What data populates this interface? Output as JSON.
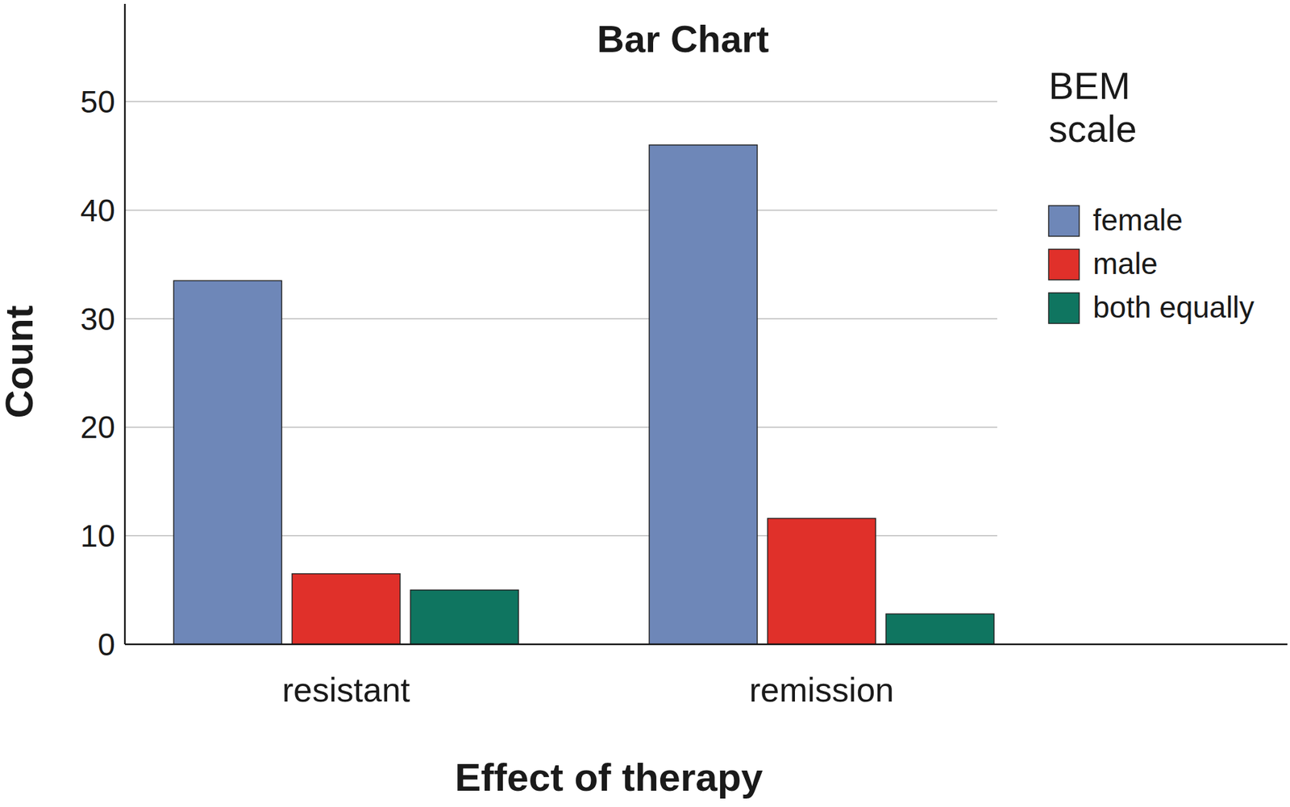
{
  "chart_data": {
    "type": "bar",
    "title": "Bar Chart",
    "x_label": "Effect of therapy",
    "y_label": "Count",
    "legend_title": "BEM scale",
    "categories": [
      "resistant",
      "remission"
    ],
    "series": [
      {
        "name": "female",
        "color": "#6e87b8",
        "values": [
          33.5,
          46
        ]
      },
      {
        "name": "male",
        "color": "#e0302a",
        "values": [
          6.5,
          11.6
        ]
      },
      {
        "name": "both equally",
        "color": "#0f7560",
        "values": [
          5,
          2.8
        ]
      }
    ],
    "ylim": [
      0,
      59
    ],
    "yticks": [
      0,
      10,
      20,
      30,
      40,
      50
    ],
    "grid": true,
    "legend": "right"
  }
}
